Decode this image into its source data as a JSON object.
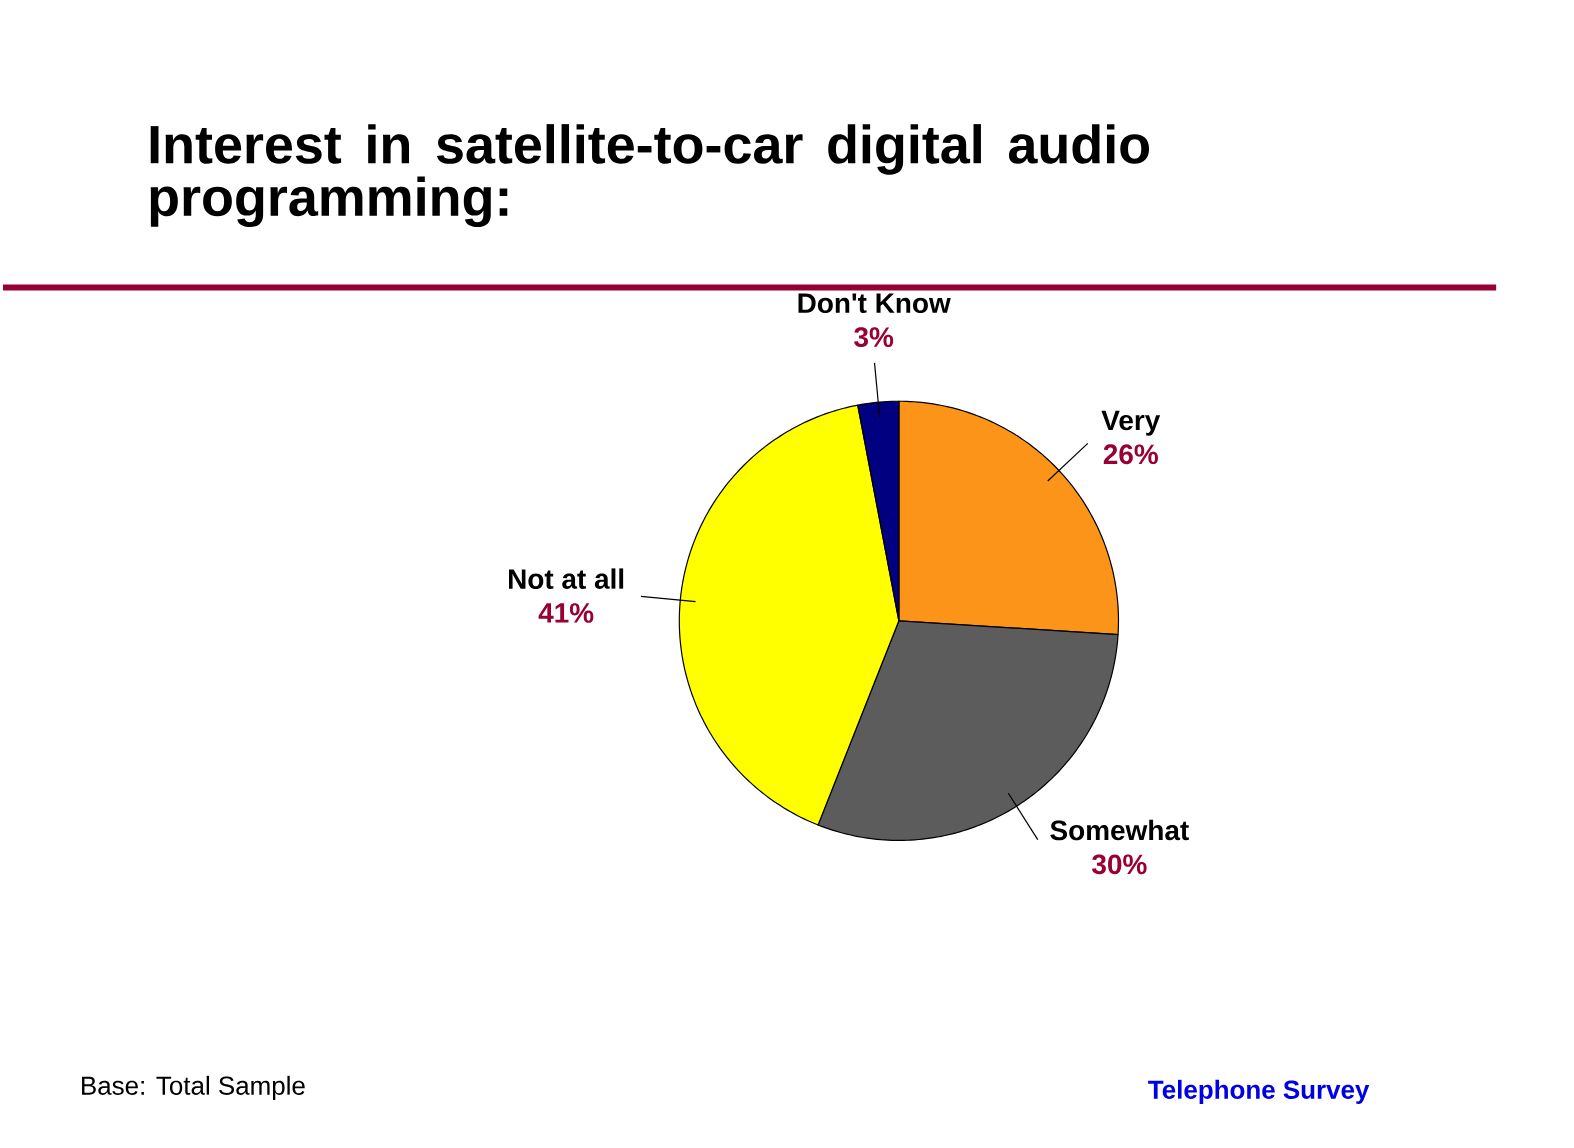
{
  "chart_data": {
    "type": "pie",
    "title": "Interest in satellite-to-car digital audio programming:",
    "categories": [
      "Very",
      "Somewhat",
      "Not at all",
      "Don't Know"
    ],
    "values": [
      26,
      30,
      41,
      3
    ],
    "colors": [
      "#fb9419",
      "#5c5c5c",
      "#ffff00",
      "#000080"
    ],
    "value_labels": [
      "26%",
      "30%",
      "41%",
      "3%"
    ],
    "annotations": [
      "Base: Total Sample",
      "Telephone Survey"
    ]
  }
}
